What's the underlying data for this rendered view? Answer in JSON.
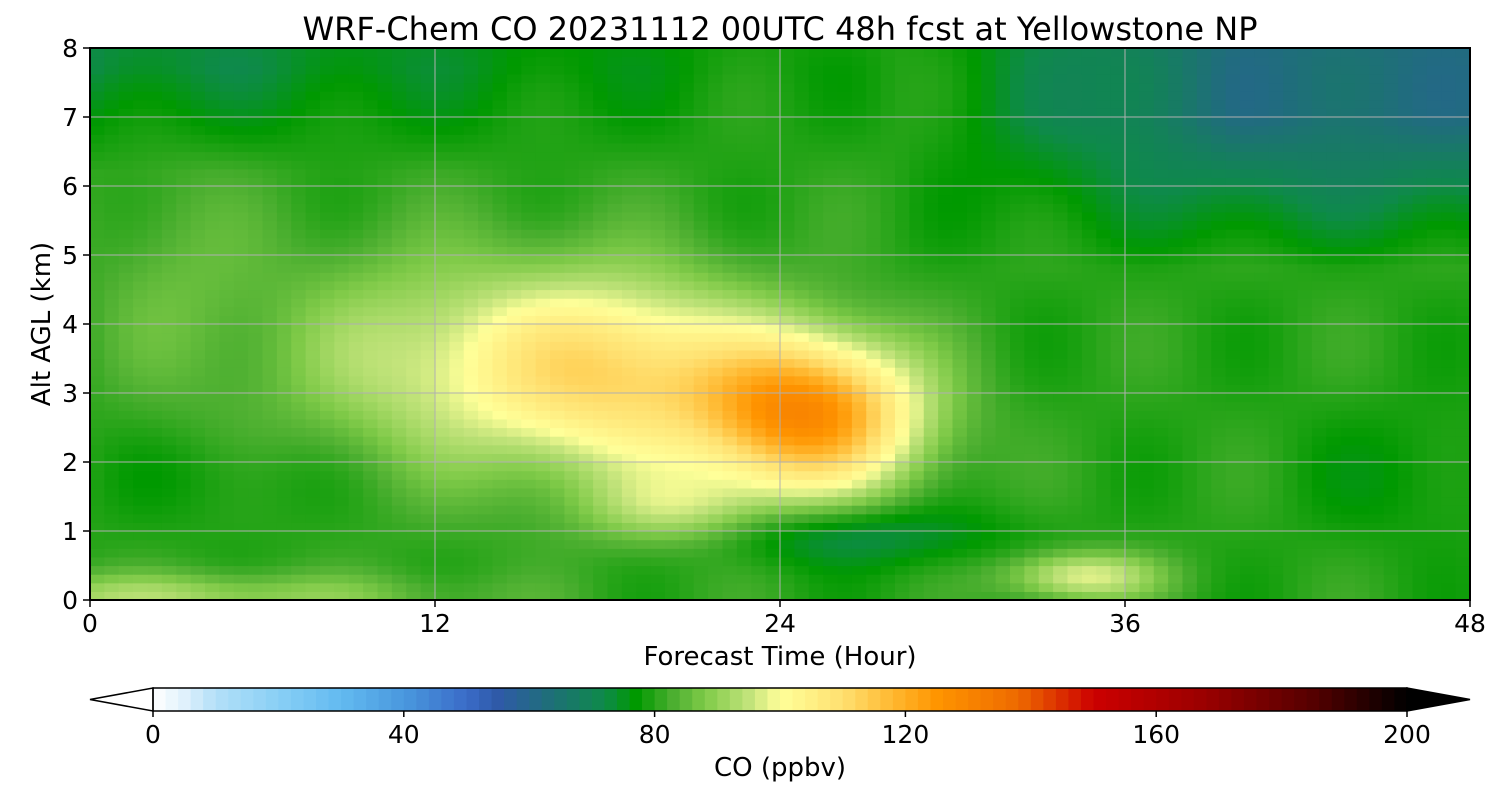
{
  "chart_data": {
    "type": "heatmap",
    "title": "WRF-Chem CO  20231112 00UTC 48h fcst at Yellowstone NP",
    "xlabel": "Forecast Time (Hour)",
    "ylabel": "Alt AGL (km)",
    "xlim": [
      0,
      48
    ],
    "ylim": [
      0,
      8
    ],
    "xticks": [
      0,
      12,
      24,
      36,
      48
    ],
    "yticks": [
      0,
      1,
      2,
      3,
      4,
      5,
      6,
      7,
      8
    ],
    "grid": true,
    "colorbar": {
      "label": "CO  (ppbv)",
      "range": [
        0,
        200
      ],
      "ticks": [
        0,
        40,
        80,
        120,
        160,
        200
      ],
      "extend": "both",
      "colors": [
        "#ffffff",
        "#e0f1fc",
        "#b3e0f8",
        "#89cff5",
        "#62baf0",
        "#4a98de",
        "#3a6cc8",
        "#2f5aa8",
        "#1f6e7a",
        "#0e8a4a",
        "#009900",
        "#4caf30",
        "#7fca48",
        "#c1e37a",
        "#ffff99",
        "#ffe070",
        "#ffb830",
        "#ff9500",
        "#ee6a00",
        "#cc0000",
        "#990000",
        "#550000",
        "#000000"
      ],
      "color_stops": [
        0,
        5,
        10,
        20,
        30,
        40,
        50,
        55,
        63,
        72,
        77,
        83,
        88,
        95,
        100,
        110,
        118,
        125,
        138,
        150,
        168,
        185,
        200
      ]
    },
    "field_centers": [
      {
        "x": 24.5,
        "y": 2.8,
        "value": 126
      },
      {
        "x": 18,
        "y": 3.2,
        "value": 105
      },
      {
        "x": 34.5,
        "y": 0.35,
        "value": 98
      },
      {
        "x": 40,
        "y": 7.2,
        "value": 63
      },
      {
        "x": 5,
        "y": 1.8,
        "value": 77
      },
      {
        "x": 46,
        "y": 1.6,
        "value": 77
      },
      {
        "x": 1,
        "y": 0.1,
        "value": 92
      }
    ]
  }
}
